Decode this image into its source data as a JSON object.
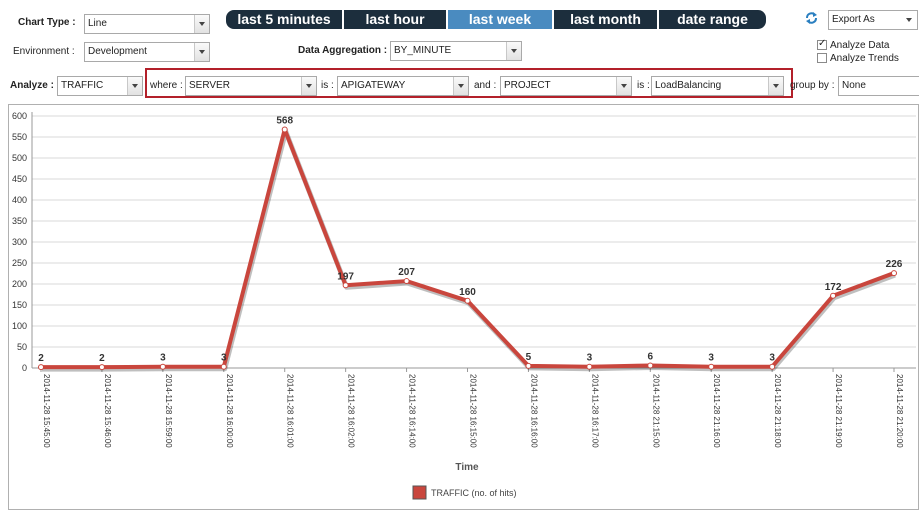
{
  "controls": {
    "chart_type_label": "Chart Type :",
    "chart_type_value": "Line",
    "environment_label": "Environment :",
    "environment_value": "Development",
    "data_aggregation_label": "Data Aggregation :",
    "data_aggregation_value": "BY_MINUTE",
    "export_value": "Export As",
    "analyze_data_label": "Analyze Data",
    "analyze_data_checked": true,
    "analyze_trends_label": "Analyze Trends",
    "analyze_trends_checked": false
  },
  "time_tabs": [
    {
      "label": "last 5 minutes",
      "active": false
    },
    {
      "label": "last hour",
      "active": false
    },
    {
      "label": "last week",
      "active": true
    },
    {
      "label": "last month",
      "active": false
    },
    {
      "label": "date range",
      "active": false
    }
  ],
  "filter": {
    "analyze_label": "Analyze :",
    "analyze_value": "TRAFFIC",
    "where_label": "where :",
    "where_value": "SERVER",
    "is1_label": "is :",
    "is1_value": "APIGATEWAY",
    "and_label": "and :",
    "and_value": "PROJECT",
    "is2_label": "is :",
    "is2_value": "LoadBalancing",
    "groupby_label": "group by :",
    "groupby_value": "None"
  },
  "colors": {
    "tab_bg": "#1c2e3d",
    "tab_active": "#4a8bc0",
    "series_line": "#c9463d",
    "highlight_box": "#b3202a"
  },
  "chart_data": {
    "type": "line",
    "xlabel": "Time",
    "ylabel": "",
    "ylim": [
      0,
      600
    ],
    "yticks": [
      0,
      50,
      100,
      150,
      200,
      250,
      300,
      350,
      400,
      450,
      500,
      550,
      600
    ],
    "grid": true,
    "legend_position": "bottom-center",
    "x": [
      "2014-11-28 15:45:00",
      "2014-11-28 15:46:00",
      "2014-11-28 15:59:00",
      "2014-11-28 16:00:00",
      "2014-11-28 16:01:00",
      "2014-11-28 16:02:00",
      "2014-11-28 16:14:00",
      "2014-11-28 16:15:00",
      "2014-11-28 16:16:00",
      "2014-11-28 16:17:00",
      "2014-11-28 21:15:00",
      "2014-11-28 21:16:00",
      "2014-11-28 21:18:00",
      "2014-11-28 21:19:00",
      "2014-11-28 21:20:00"
    ],
    "series": [
      {
        "name": "TRAFFIC (no. of hits)",
        "values": [
          2,
          2,
          3,
          3,
          568,
          197,
          207,
          160,
          5,
          3,
          6,
          3,
          3,
          172,
          226
        ]
      }
    ]
  }
}
